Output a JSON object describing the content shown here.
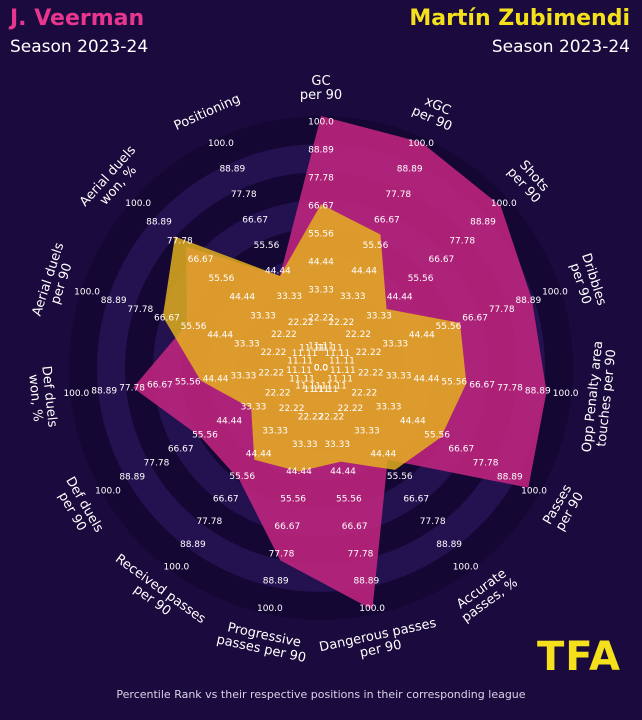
{
  "header": {
    "player_a": "J. Veerman",
    "player_b": "Martín Zubimendi",
    "season_a": "Season 2023-24",
    "season_b": "Season 2023-24"
  },
  "colors": {
    "player_a": "#c2267f",
    "player_b": "#e8b41c",
    "background": "#1a0a3d",
    "ring_dark": "#140733",
    "ring_light": "#231150"
  },
  "chart_data": {
    "type": "radar",
    "title": "",
    "rlim": [
      0,
      100
    ],
    "ring_labels": [
      "11.11",
      "22.22",
      "33.33",
      "44.44",
      "55.56",
      "66.67",
      "77.78",
      "88.89",
      "100.0"
    ],
    "categories": [
      "GC\nper 90",
      "xGC\nper 90",
      "Shots\nper 90",
      "Dribbles\nper 90",
      "Opp Penalty area\ntouches per 90",
      "Passes\nper 90",
      "Accurate\npasses, %",
      "Dangerous passes\nper 90",
      "Progressive\npasses per 90",
      "Received passes\nper 90",
      "Def duels\nper 90",
      "Def duels\nwon, %",
      "Aerial duels\nper 90",
      "Aerial duels\nwon, %",
      "Positioning"
    ],
    "series": [
      {
        "name": "J. Veerman",
        "values": [
          100,
          98,
          96,
          88,
          90,
          95,
          45,
          98,
          78,
          55,
          55,
          75,
          56,
          72,
          40
        ]
      },
      {
        "name": "Martín Zubimendi",
        "values": [
          65,
          58,
          35,
          58,
          58,
          55,
          50,
          38,
          42,
          45,
          32,
          48,
          66,
          78,
          40
        ]
      }
    ]
  },
  "logo": {
    "text": "TFA"
  },
  "footer": {
    "caption": "Percentile Rank vs their respective positions in their corresponding league"
  }
}
